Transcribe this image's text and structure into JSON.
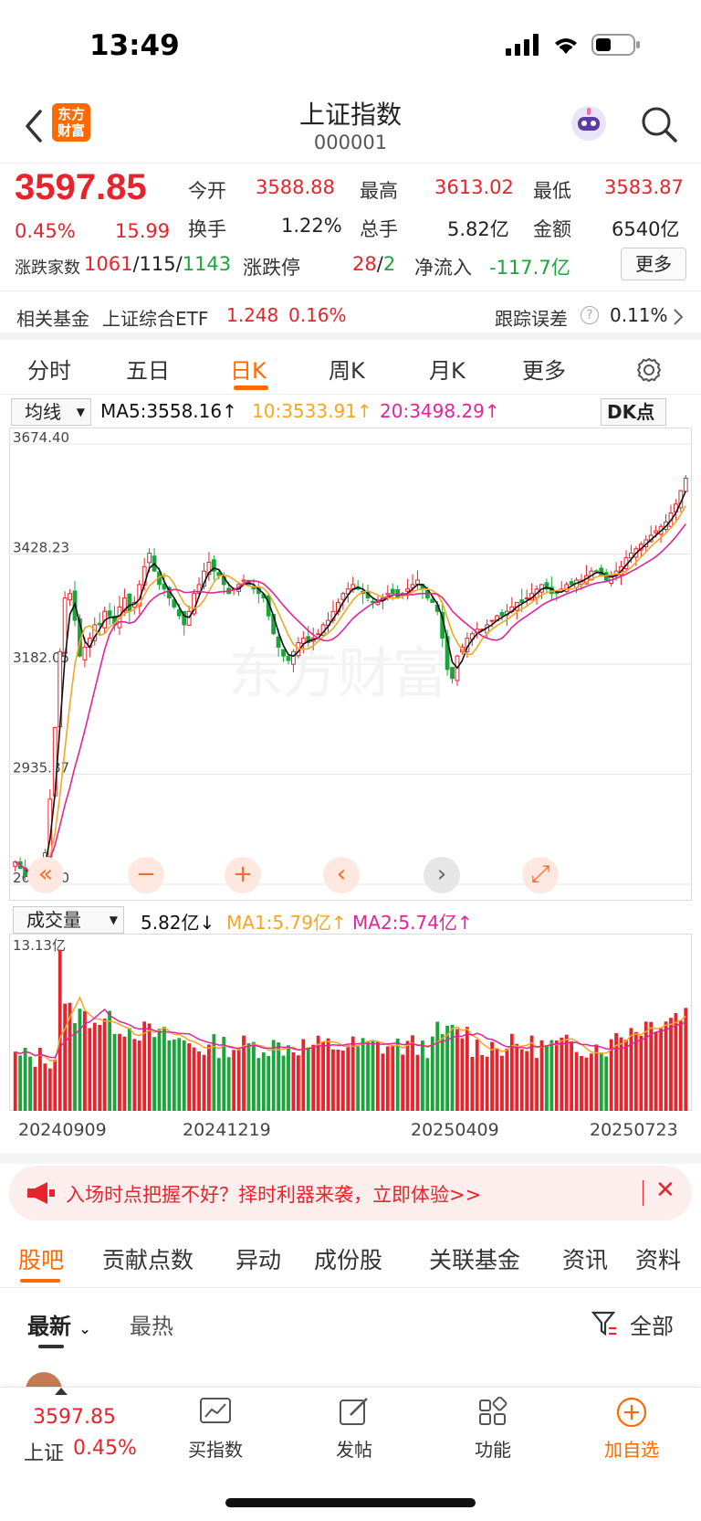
{
  "status": {
    "time": "13:49"
  },
  "nav": {
    "logo_line1": "东方",
    "logo_line2": "财富",
    "title": "上证指数",
    "code": "000001"
  },
  "quote": {
    "price": "3597.85",
    "change_pct": "0.45%",
    "change": "15.99",
    "open_label": "今开",
    "open": "3588.88",
    "high_label": "最高",
    "high": "3613.02",
    "low_label": "最低",
    "low": "3583.87",
    "turnover_label": "换手",
    "turnover": "1.22%",
    "volume_label": "总手",
    "volume": "5.82亿",
    "amount_label": "金额",
    "amount": "6540亿",
    "breadth_label": "涨跌家数",
    "up": "1061",
    "flat": "115",
    "down": "1143",
    "limit_label": "涨跌停",
    "limit_up": "28",
    "limit_down": "2",
    "netflow_label": "净流入",
    "netflow": "-117.7亿",
    "more_label": "更多"
  },
  "fund": {
    "label": "相关基金",
    "name": "上证综合ETF",
    "price": "1.248",
    "pct": "0.16%",
    "track_label": "跟踪误差",
    "track_value": "0.11%"
  },
  "tabs": [
    "分时",
    "五日",
    "日K",
    "周K",
    "月K",
    "更多"
  ],
  "ma_bar": {
    "selector": "均线",
    "ma5": "MA5:3558.16↑",
    "ma10": "10:3533.91↑",
    "ma20": "20:3498.29↑",
    "dk": "DK点"
  },
  "vol_bar": {
    "selector": "成交量",
    "vol": "5.82亿↓",
    "ma1": "MA1:5.79亿↑",
    "ma2": "MA2:5.74亿↑",
    "max_label": "13.13亿"
  },
  "chart_data": {
    "type": "candlestick",
    "y_ticks": [
      "3674.40",
      "3428.23",
      "3182.05",
      "2935.87",
      "2689.70"
    ],
    "ylim": [
      2689.7,
      3674.4
    ],
    "x_labels": [
      "20240909",
      "20241219",
      "20250409",
      "20250723"
    ],
    "close_path": [
      2740,
      2725,
      2710,
      2700,
      2715,
      2730,
      2760,
      2880,
      3040,
      3210,
      3330,
      3340,
      3280,
      3200,
      3220,
      3240,
      3270,
      3270,
      3300,
      3290,
      3270,
      3310,
      3330,
      3300,
      3320,
      3360,
      3400,
      3430,
      3390,
      3360,
      3350,
      3330,
      3310,
      3290,
      3270,
      3300,
      3340,
      3360,
      3390,
      3410,
      3390,
      3380,
      3360,
      3340,
      3350,
      3360,
      3370,
      3360,
      3350,
      3340,
      3330,
      3290,
      3250,
      3220,
      3200,
      3190,
      3210,
      3230,
      3240,
      3230,
      3240,
      3250,
      3270,
      3280,
      3300,
      3320,
      3340,
      3350,
      3360,
      3350,
      3340,
      3330,
      3320,
      3320,
      3330,
      3340,
      3340,
      3330,
      3340,
      3350,
      3360,
      3370,
      3350,
      3330,
      3320,
      3300,
      3240,
      3170,
      3150,
      3200,
      3220,
      3240,
      3250,
      3260,
      3260,
      3270,
      3280,
      3290,
      3290,
      3300,
      3310,
      3320,
      3320,
      3330,
      3340,
      3350,
      3360,
      3350,
      3340,
      3340,
      3350,
      3360,
      3360,
      3370,
      3370,
      3380,
      3390,
      3390,
      3380,
      3370,
      3380,
      3390,
      3400,
      3420,
      3430,
      3440,
      3450,
      3460,
      3470,
      3480,
      3490,
      3500,
      3520,
      3540,
      3570,
      3597.85
    ],
    "volume_max": "13.13亿"
  },
  "controls": [
    "«",
    "−",
    "+",
    "‹",
    "›",
    "⤢"
  ],
  "banner": {
    "text": "入场时点把握不好？择时利器来袭，立即体验>>",
    "close": "✕"
  },
  "sub_tabs": [
    "股吧",
    "贡献点数",
    "异动",
    "成份股",
    "关联基金",
    "资讯",
    "资料"
  ],
  "filters": {
    "latest": "最新",
    "hot": "最热",
    "all": "全部"
  },
  "bottom": {
    "price": "3597.85",
    "index_label": "上证",
    "pct": "0.45%",
    "items": [
      "买指数",
      "发帖",
      "功能",
      "加自选"
    ]
  },
  "colors": {
    "up": "#e8232b",
    "down": "#1aa53a",
    "accent": "#ff6a00",
    "ma5": "#111111",
    "ma10": "#f5a623",
    "ma20": "#e0249a"
  }
}
